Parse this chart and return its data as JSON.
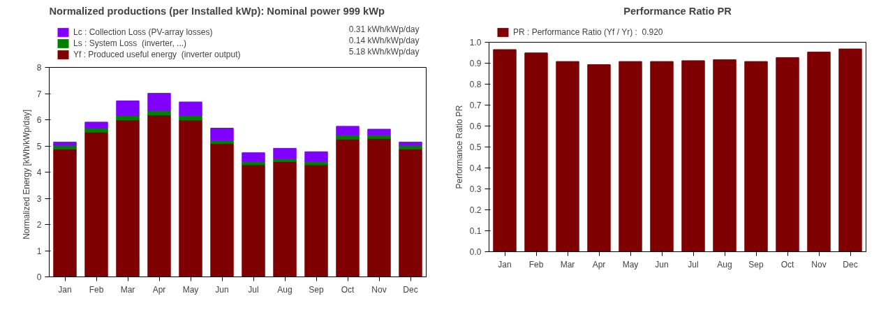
{
  "chart_data": [
    {
      "type": "bar",
      "title": "Normalized productions (per Installed kWp):   Nominal power 999 kWp",
      "ylabel": "Normalized Energy   [kWh/kWp/day]",
      "categories": [
        "Jan",
        "Feb",
        "Mar",
        "Apr",
        "May",
        "Jun",
        "Jul",
        "Aug",
        "Sep",
        "Oct",
        "Nov",
        "Dec"
      ],
      "stacked": true,
      "series": [
        {
          "name": "Yf : Produced useful energy  (inverter output)",
          "color": "#7f0000",
          "values": [
            4.88,
            5.53,
            5.99,
            6.18,
            5.99,
            5.09,
            4.28,
            4.4,
            4.28,
            5.26,
            5.29,
            4.88
          ]
        },
        {
          "name": "Ls : System Loss  (inverter, ...)",
          "color": "#007f00",
          "values": [
            0.15,
            0.17,
            0.17,
            0.18,
            0.17,
            0.13,
            0.13,
            0.13,
            0.13,
            0.17,
            0.14,
            0.15
          ]
        },
        {
          "name": "Lc : Collection Loss (PV-array losses)",
          "color": "#8000ff",
          "values": [
            0.12,
            0.21,
            0.56,
            0.65,
            0.52,
            0.46,
            0.33,
            0.38,
            0.37,
            0.32,
            0.21,
            0.12
          ]
        }
      ],
      "annotations": [
        "5.18 kWh/kWp/day",
        "0.14 kWh/kWp/day",
        "0.31 kWh/kWp/day"
      ],
      "ylim": [
        0,
        8
      ],
      "yticks": [
        0,
        1,
        2,
        3,
        4,
        5,
        6,
        7,
        8
      ],
      "legend": "top",
      "grid": false
    },
    {
      "type": "bar",
      "title": "Performance Ratio PR",
      "ylabel": "Performance Ratio PR",
      "categories": [
        "Jan",
        "Feb",
        "Mar",
        "Apr",
        "May",
        "Jun",
        "Jul",
        "Aug",
        "Sep",
        "Oct",
        "Nov",
        "Dec"
      ],
      "series": [
        {
          "name": "PR : Performance Ratio (Yf / Yr) :  0.920",
          "color": "#7f0000",
          "values": [
            0.965,
            0.949,
            0.908,
            0.893,
            0.908,
            0.908,
            0.912,
            0.917,
            0.908,
            0.927,
            0.953,
            0.968
          ]
        }
      ],
      "ylim": [
        0,
        1
      ],
      "yticks": [
        {
          "value": 0,
          "label": "0.0"
        },
        0.1,
        0.2,
        0.3,
        0.4,
        0.5,
        0.6,
        0.7,
        0.8,
        0.9,
        {
          "value": 1,
          "label": "1.0"
        }
      ],
      "legend": "top",
      "grid": false
    }
  ]
}
